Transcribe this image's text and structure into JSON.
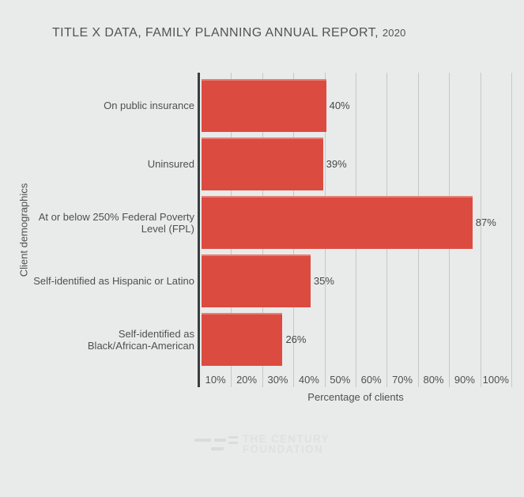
{
  "title": {
    "text": "TITLE X DATA, FAMILY PLANNING ANNUAL REPORT,",
    "year": "2020"
  },
  "chart_data": {
    "type": "bar",
    "orientation": "horizontal",
    "title": "TITLE X DATA, FAMILY PLANNING ANNUAL REPORT, 2020",
    "categories": [
      "On public insurance",
      "Uninsured",
      "At or below 250% Federal Poverty Level (FPL)",
      "Self-identified as Hispanic or Latino",
      "Self-identified as Black/African-American"
    ],
    "category_lines": [
      [
        "On public insurance"
      ],
      [
        "Uninsured"
      ],
      [
        "At or below 250% Federal Poverty",
        "Level (FPL)"
      ],
      [
        "Self-identified as Hispanic or Latino"
      ],
      [
        "Self-identified as",
        "Black/African-American"
      ]
    ],
    "values": [
      40,
      39,
      87,
      35,
      26
    ],
    "value_labels": [
      "40%",
      "39%",
      "87%",
      "35%",
      "26%"
    ],
    "x_tick_labels": [
      "10%",
      "20%",
      "30%",
      "40%",
      "50%",
      "60%",
      "70%",
      "80%",
      "90%",
      "100%"
    ],
    "xlim": [
      0,
      100
    ],
    "xlabel": "Percentage of clients",
    "ylabel": "Client demographics",
    "grid": true,
    "legend": false,
    "bar_color": "#dc4b40",
    "background_color": "#e9ebea",
    "axis_color": "#3a3d3f",
    "gridline_color": "#c6c8c7"
  },
  "watermark": {
    "line1": "THE CENTURY",
    "line2": "FOUNDATION"
  }
}
